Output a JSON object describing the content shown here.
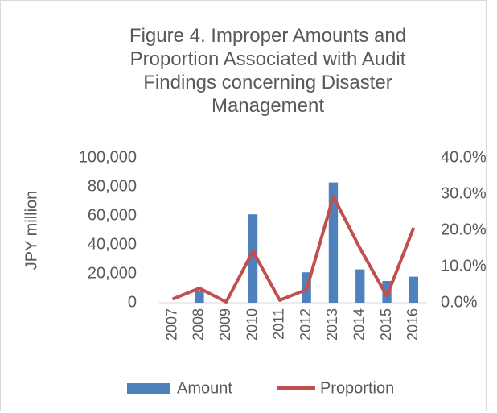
{
  "chart_data": {
    "type": "bar-line",
    "title": "Figure 4. Improper Amounts and Proportion Associated with Audit Findings concerning Disaster Management",
    "ylabel": "JPY million",
    "categories": [
      "2007",
      "2008",
      "2009",
      "2010",
      "2011",
      "2012",
      "2013",
      "2014",
      "2015",
      "2016"
    ],
    "series": [
      {
        "name": "Amount",
        "type": "bar",
        "color": "#4f81bd",
        "values": [
          0,
          8000,
          0,
          61000,
          0,
          21000,
          83000,
          23000,
          15000,
          18000
        ]
      },
      {
        "name": "Proportion",
        "type": "line",
        "axis": "y2",
        "color": "#c0504d",
        "values": [
          1.0,
          4.0,
          0.2,
          14.2,
          0.7,
          3.6,
          29.3,
          15.0,
          1.8,
          20.7
        ]
      }
    ],
    "ylim": [
      0,
      100000
    ],
    "yticks": [
      0,
      {
        "value": 20000,
        "label": "20,000"
      },
      {
        "value": 40000,
        "label": "40,000"
      },
      {
        "value": 60000,
        "label": "60,000"
      },
      {
        "value": 80000,
        "label": "80,000"
      },
      {
        "value": 100000,
        "label": "100,000"
      }
    ],
    "y2lim": [
      0,
      40
    ],
    "y2ticks": [
      {
        "value": 0,
        "label": "0.0%"
      },
      {
        "value": 10,
        "label": "10.0%"
      },
      {
        "value": 20,
        "label": "20.0%"
      },
      {
        "value": 30,
        "label": "30.0%"
      },
      {
        "value": 40,
        "label": "40.0%"
      }
    ],
    "legend": "bottom"
  }
}
